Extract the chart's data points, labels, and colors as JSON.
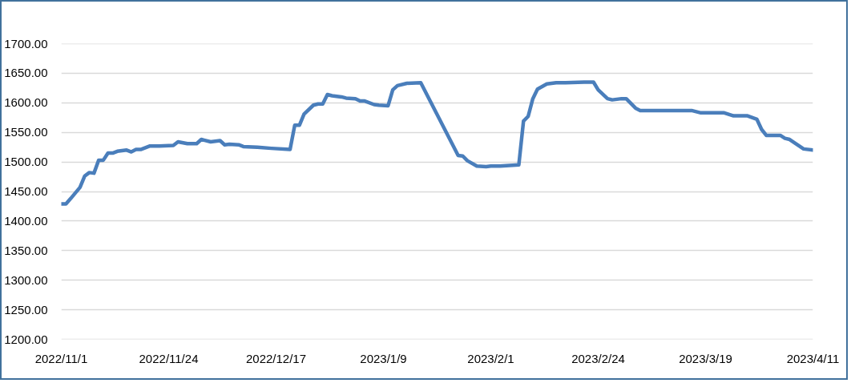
{
  "chart_data": {
    "type": "line",
    "x": [
      "2022-11-01",
      "2022-11-02",
      "2022-11-03",
      "2022-11-05",
      "2022-11-06",
      "2022-11-07",
      "2022-11-08",
      "2022-11-09",
      "2022-11-10",
      "2022-11-11",
      "2022-11-12",
      "2022-11-13",
      "2022-11-15",
      "2022-11-16",
      "2022-11-17",
      "2022-11-18",
      "2022-11-20",
      "2022-11-22",
      "2022-11-25",
      "2022-11-26",
      "2022-11-28",
      "2022-11-30",
      "2022-12-01",
      "2022-12-03",
      "2022-12-05",
      "2022-12-06",
      "2022-12-07",
      "2022-12-09",
      "2022-12-10",
      "2022-12-13",
      "2022-12-16",
      "2022-12-20",
      "2022-12-21",
      "2022-12-22",
      "2022-12-23",
      "2022-12-25",
      "2022-12-26",
      "2022-12-27",
      "2022-12-28",
      "2022-12-29",
      "2022-12-31",
      "2023-01-01",
      "2023-01-03",
      "2023-01-04",
      "2023-01-05",
      "2023-01-07",
      "2023-01-08",
      "2023-01-10",
      "2023-01-11",
      "2023-01-12",
      "2023-01-14",
      "2023-01-17",
      "2023-01-25",
      "2023-01-26",
      "2023-01-27",
      "2023-01-29",
      "2023-01-31",
      "2023-02-01",
      "2023-02-03",
      "2023-02-05",
      "2023-02-07",
      "2023-02-08",
      "2023-02-09",
      "2023-02-10",
      "2023-02-11",
      "2023-02-13",
      "2023-02-15",
      "2023-02-17",
      "2023-02-21",
      "2023-02-23",
      "2023-02-24",
      "2023-02-26",
      "2023-02-27",
      "2023-03-01",
      "2023-03-02",
      "2023-03-04",
      "2023-03-05",
      "2023-03-08",
      "2023-03-12",
      "2023-03-16",
      "2023-03-18",
      "2023-03-23",
      "2023-03-25",
      "2023-03-28",
      "2023-03-30",
      "2023-03-31",
      "2023-04-01",
      "2023-04-04",
      "2023-04-05",
      "2023-04-06",
      "2023-04-09",
      "2023-04-11"
    ],
    "series": [
      {
        "color": "#4a7ebb",
        "values": [
          1429,
          1429,
          1438,
          1457,
          1476,
          1482,
          1481,
          1503,
          1503,
          1515,
          1515,
          1518,
          1520,
          1517,
          1521,
          1521,
          1527,
          1527,
          1528,
          1534,
          1531,
          1531,
          1538,
          1534,
          1536,
          1529,
          1530,
          1529,
          1526,
          1525,
          1523,
          1521,
          1562,
          1562,
          1581,
          1596,
          1598,
          1598,
          1614,
          1612,
          1610,
          1608,
          1607,
          1603,
          1603,
          1597,
          1596,
          1595,
          1622,
          1629,
          1633,
          1634,
          1511,
          1510,
          1502,
          1493,
          1492,
          1493,
          1493,
          1494,
          1495,
          1569,
          1577,
          1607,
          1623,
          1632,
          1634,
          1634,
          1635,
          1635,
          1622,
          1607,
          1605,
          1607,
          1607,
          1591,
          1587,
          1587,
          1587,
          1587,
          1583,
          1583,
          1578,
          1578,
          1572,
          1555,
          1545,
          1545,
          1540,
          1538,
          1522,
          1520
        ]
      }
    ],
    "xlim": [
      "2022-11-01",
      "2023-04-11"
    ],
    "xticks": [
      {
        "value": "2022-11-01",
        "label": "2022/11/1"
      },
      {
        "value": "2022-11-24",
        "label": "2022/11/24"
      },
      {
        "value": "2022-12-17",
        "label": "2022/12/17"
      },
      {
        "value": "2023-01-09",
        "label": "2023/1/9"
      },
      {
        "value": "2023-02-01",
        "label": "2023/2/1"
      },
      {
        "value": "2023-02-24",
        "label": "2023/2/24"
      },
      {
        "value": "2023-03-19",
        "label": "2023/3/19"
      },
      {
        "value": "2023-04-11",
        "label": "2023/4/11"
      }
    ],
    "ylim": [
      1200,
      1700
    ],
    "yticks": [
      {
        "value": 1200,
        "label": "1200.00"
      },
      {
        "value": 1250,
        "label": "1250.00"
      },
      {
        "value": 1300,
        "label": "1300.00"
      },
      {
        "value": 1350,
        "label": "1350.00"
      },
      {
        "value": 1400,
        "label": "1400.00"
      },
      {
        "value": 1450,
        "label": "1450.00"
      },
      {
        "value": 1500,
        "label": "1500.00"
      },
      {
        "value": 1550,
        "label": "1550.00"
      },
      {
        "value": 1600,
        "label": "1600.00"
      },
      {
        "value": 1650,
        "label": "1650.00"
      },
      {
        "value": 1700,
        "label": "1700.00"
      }
    ],
    "grid": "y"
  }
}
